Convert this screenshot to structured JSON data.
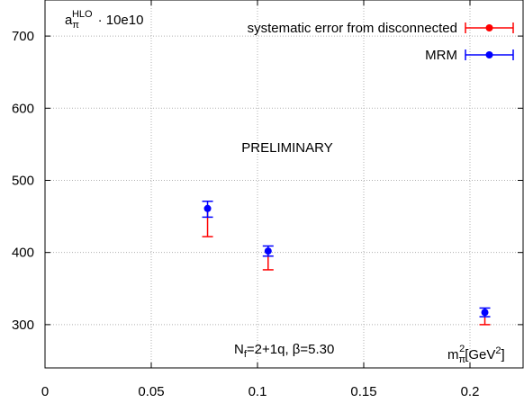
{
  "chart_data": {
    "type": "scatter",
    "title": "",
    "xlabel": "",
    "ylabel": "",
    "xlim": [
      0,
      0.225
    ],
    "ylim": [
      240,
      750
    ],
    "xticks": [
      0,
      0.05,
      0.1,
      0.15,
      0.2
    ],
    "xtick_labels": [
      "0",
      "0.05",
      "0.1",
      "0.15",
      "0.2"
    ],
    "yticks": [
      300,
      400,
      500,
      600,
      700
    ],
    "ytick_labels": [
      "300",
      "400",
      "500",
      "600",
      "700"
    ],
    "grid": true,
    "legend_position": "top-right",
    "series": [
      {
        "name": "systematic error from disconnected",
        "color": "#ff0000",
        "x": [
          0.0765,
          0.105,
          0.207
        ],
        "y": [
          461,
          402,
          317
        ],
        "err_low": [
          39,
          26,
          17
        ],
        "err_high": [
          0,
          0,
          0
        ]
      },
      {
        "name": "MRM",
        "color": "#0000ff",
        "x": [
          0.0765,
          0.105,
          0.207
        ],
        "y": [
          461,
          402,
          317
        ],
        "err_low": [
          12,
          7,
          6
        ],
        "err_high": [
          10,
          7,
          6
        ]
      }
    ],
    "annotations": {
      "quantity": "a",
      "quantity_sub": "π",
      "quantity_sup": "HLO",
      "quantity_factor": "· 10e10",
      "preliminary": "PRELIMINARY",
      "ensemble_prefix": "N",
      "ensemble_sub": "f",
      "ensemble_rest": "=2+1q, β=5.30",
      "x_unit_prefix": "m",
      "x_unit_sub": "π",
      "x_unit_sup": "2",
      "x_unit_bracket": "[GeV",
      "x_unit_sup2": "2",
      "x_unit_close": "]"
    }
  }
}
